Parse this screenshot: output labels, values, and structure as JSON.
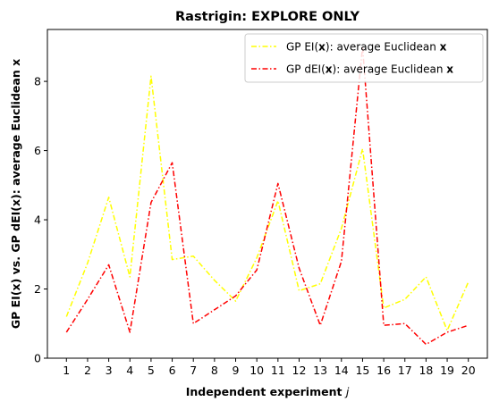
{
  "chart_data": {
    "type": "line",
    "title": "Rastrigin: EXPLORE ONLY",
    "xlabel": "Independent experiment j",
    "ylabel": "GP EI(x) vs. GP dEI(x): average Euclidean x",
    "x": [
      1,
      2,
      3,
      4,
      5,
      6,
      7,
      8,
      9,
      10,
      11,
      12,
      13,
      14,
      15,
      16,
      17,
      18,
      19,
      20
    ],
    "xlim": [
      0.1,
      20.9
    ],
    "ylim": [
      0,
      9.5
    ],
    "yticks": [
      0,
      2,
      4,
      6,
      8
    ],
    "legend_position": "top-right",
    "grid": false,
    "series": [
      {
        "name": "GP EI(x): average Euclidean x",
        "color": "#ffff00",
        "linestyle": "dashdot",
        "values": [
          1.2,
          2.75,
          4.65,
          2.35,
          8.15,
          2.85,
          2.95,
          2.25,
          1.65,
          2.9,
          4.55,
          1.95,
          2.15,
          3.75,
          6.05,
          1.45,
          1.7,
          2.35,
          0.8,
          2.2
        ]
      },
      {
        "name": "GP dEI(x): average Euclidean x",
        "color": "#ff0000",
        "linestyle": "dashdot",
        "values": [
          0.75,
          1.7,
          2.7,
          0.75,
          4.5,
          5.65,
          1.0,
          1.4,
          1.8,
          2.55,
          5.05,
          2.6,
          0.95,
          2.8,
          9.0,
          0.95,
          1.0,
          0.4,
          0.75,
          0.95
        ]
      }
    ]
  }
}
